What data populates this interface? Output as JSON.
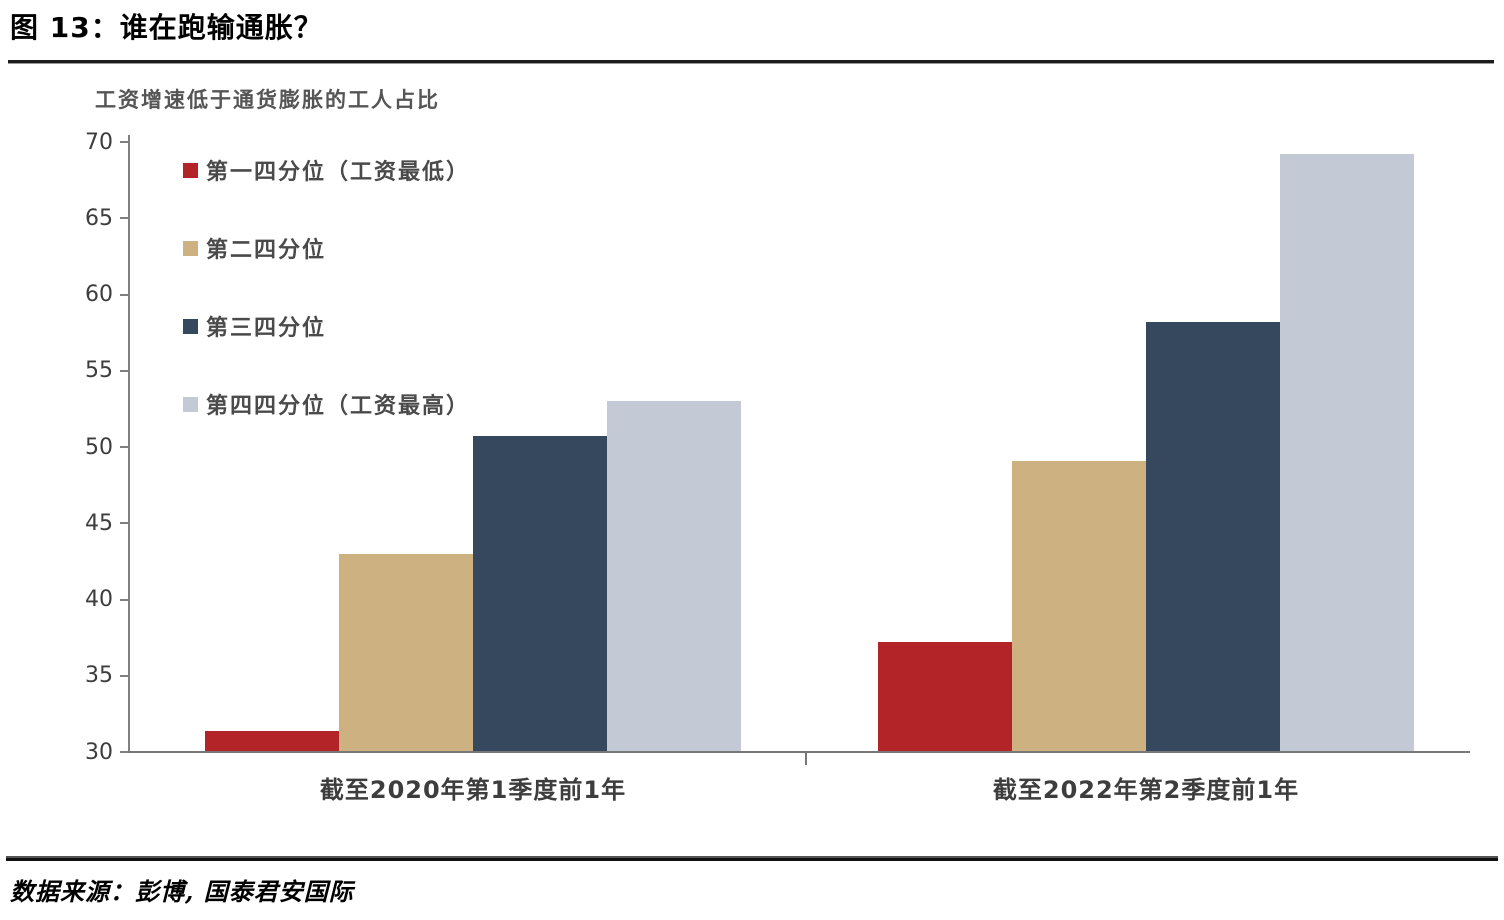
{
  "header": {
    "title": "图 13：谁在跑输通胀？"
  },
  "footer": {
    "source": "数据来源：彭博, 国泰君安国际"
  },
  "chart_data": {
    "type": "bar",
    "title": "工资增速低于通货膨胀的工人占比",
    "categories": [
      "截至2020年第1季度前1年",
      "截至2022年第2季度前1年"
    ],
    "series": [
      {
        "name": "第一四分位（工资最低）",
        "color": "#B22428",
        "values": [
          31.4,
          37.2
        ]
      },
      {
        "name": "第二四分位",
        "color": "#CDB180",
        "values": [
          43.0,
          49.1
        ]
      },
      {
        "name": "第三四分位",
        "color": "#36485E",
        "values": [
          50.7,
          58.2
        ]
      },
      {
        "name": "第四四分位（工资最高）",
        "color": "#C3C9D5",
        "values": [
          53.0,
          69.2
        ]
      }
    ],
    "ylim": [
      30,
      70
    ],
    "yticks": [
      30,
      35,
      40,
      45,
      50,
      55,
      60,
      65,
      70
    ],
    "xlabel": "",
    "ylabel": "",
    "grid": false,
    "legend_position": "inside-top-left",
    "axis_color": "#808080",
    "tick_label_color": "#3d3d3d"
  }
}
